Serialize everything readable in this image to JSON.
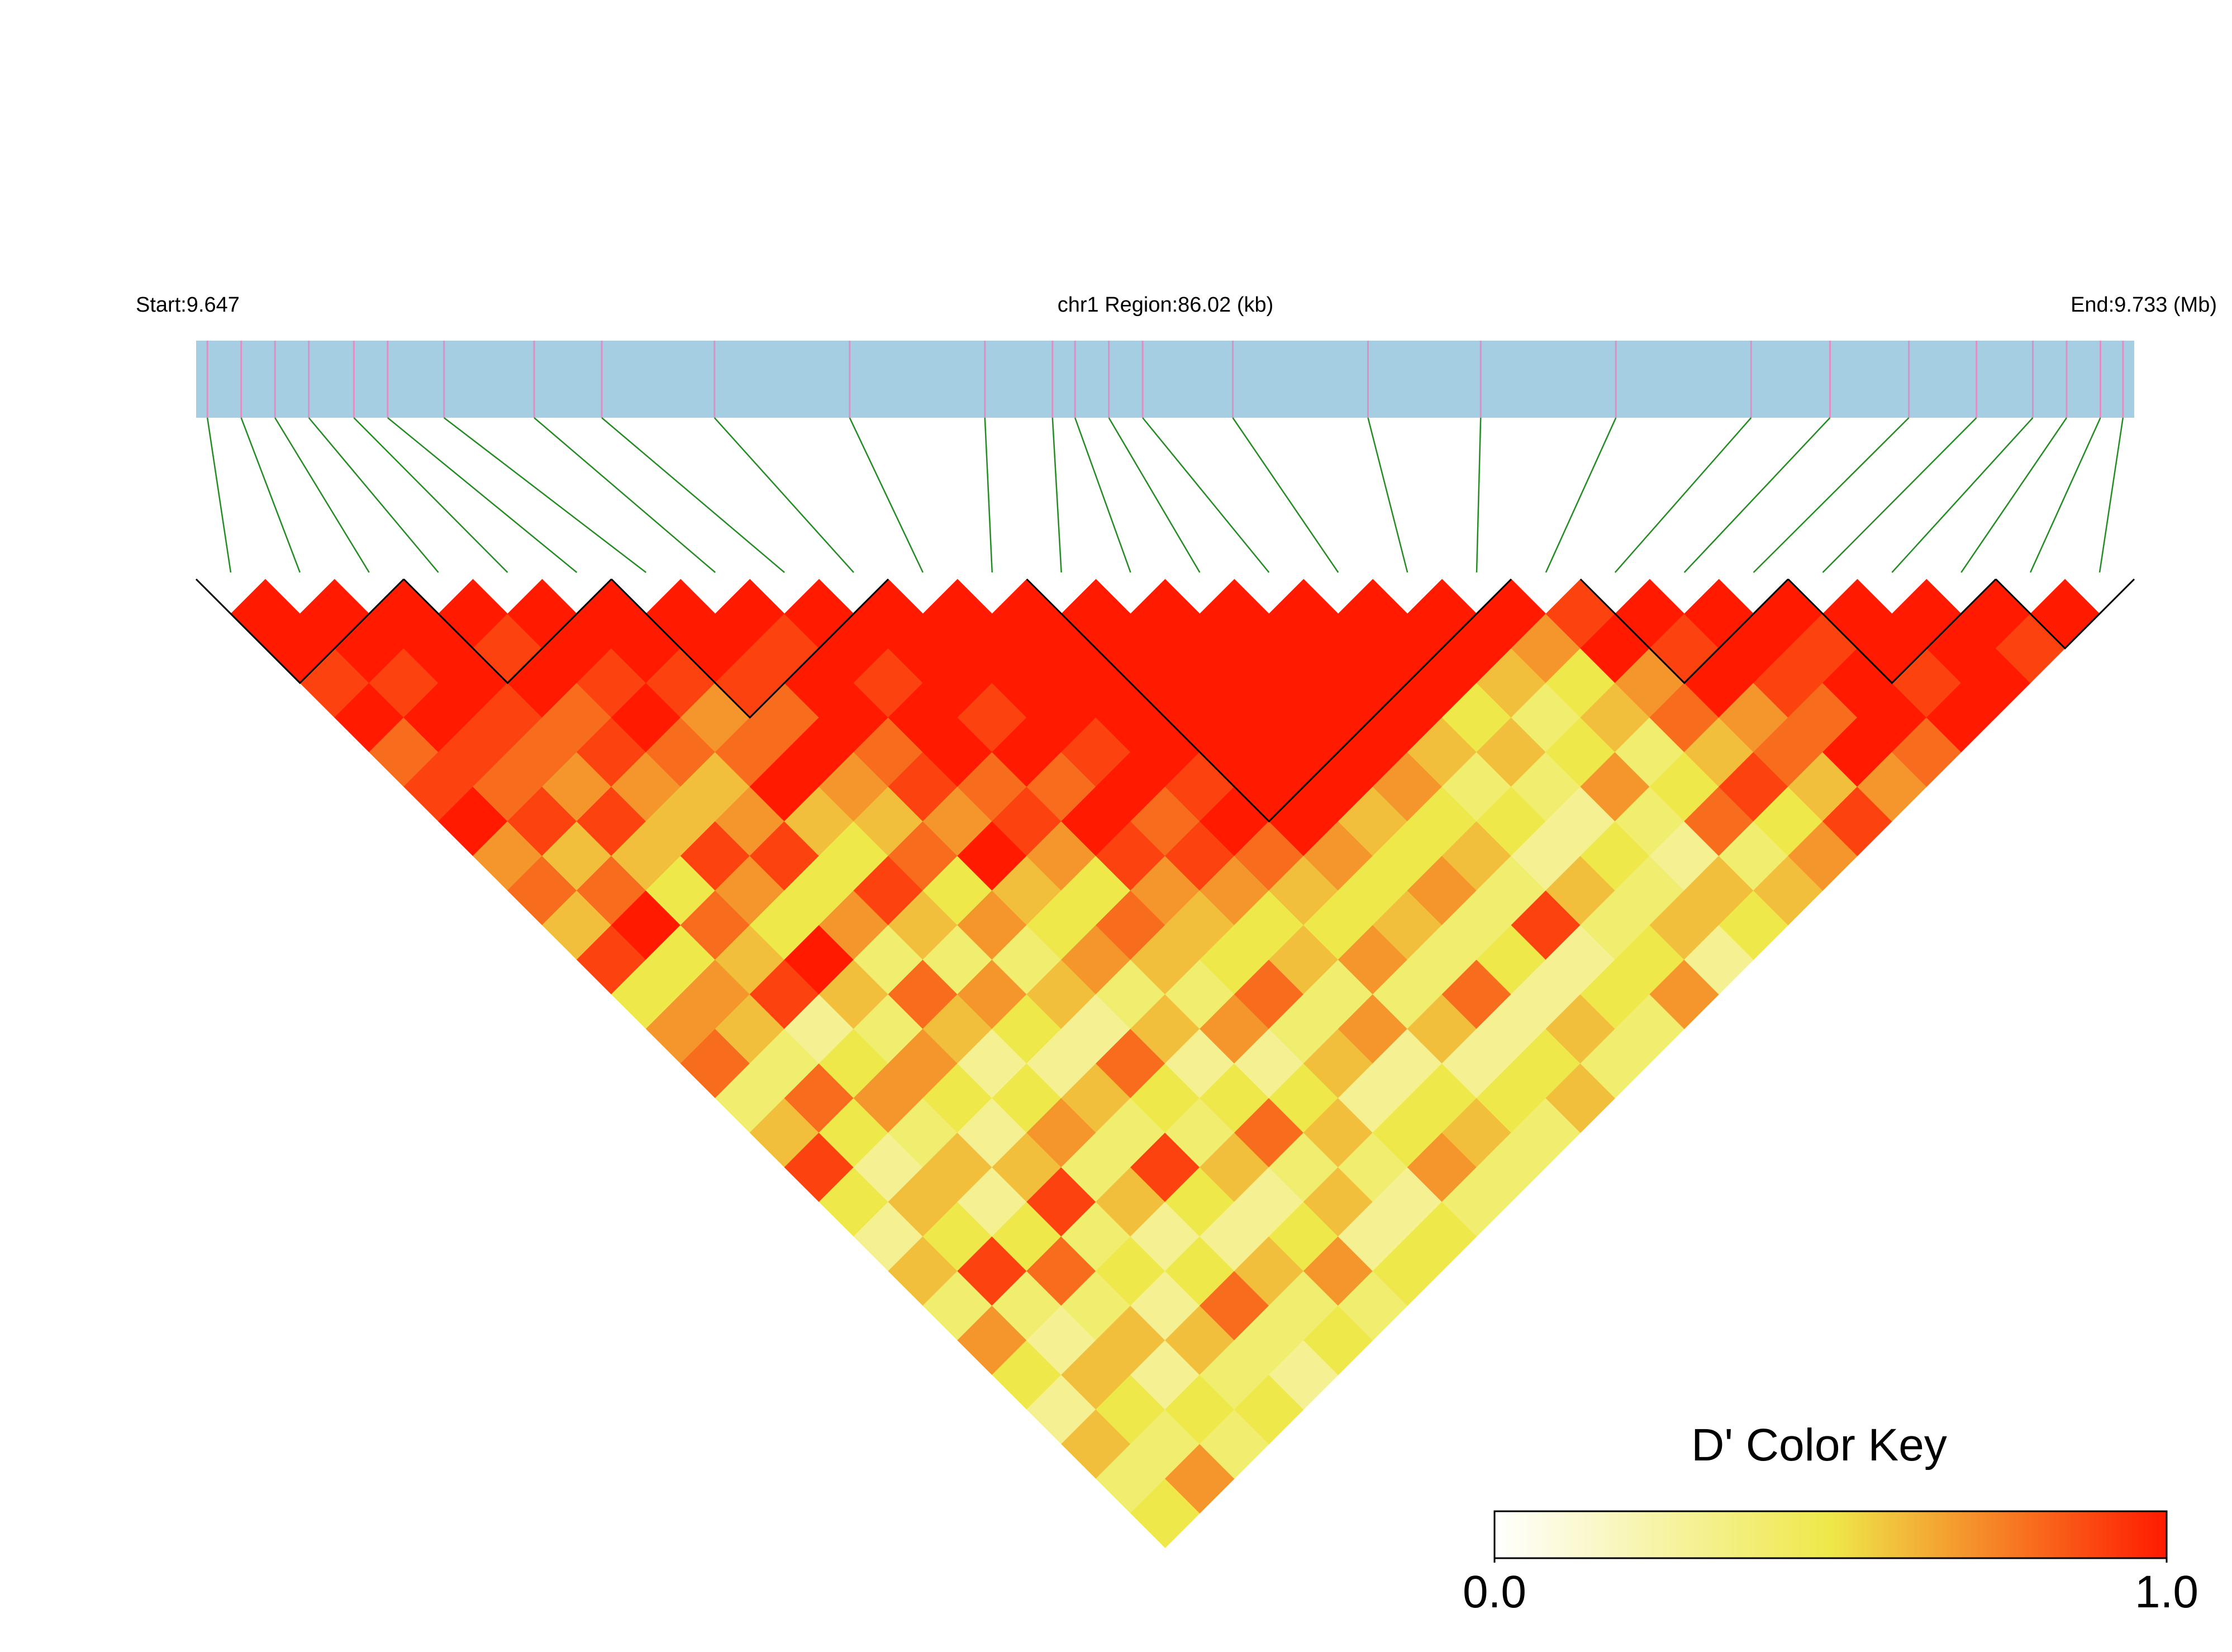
{
  "chart_data": {
    "type": "ld_heatmap",
    "start_label": "Start:9.647",
    "region_label": "chr1 Region:86.02 (kb)",
    "end_label": "End:9.733 (Mb)",
    "xlim": [
      9.647,
      9.733
    ],
    "positions": [
      9.6475,
      9.649,
      9.6505,
      9.652,
      9.654,
      9.6555,
      9.658,
      9.662,
      9.665,
      9.67,
      9.676,
      9.682,
      9.685,
      9.686,
      9.6875,
      9.689,
      9.693,
      9.699,
      9.704,
      9.71,
      9.716,
      9.7195,
      9.723,
      9.726,
      9.7285,
      9.73,
      9.7315,
      9.7325
    ],
    "bar_color": "#a6cee3",
    "snp_color": "#e08fc4",
    "link_color": "#228b22",
    "block_color": "#000000",
    "colormap": [
      "#ffffff",
      "#eee84a",
      "#ff1a00"
    ],
    "ld": [
      [
        1,
        1,
        0.9,
        1,
        0.8,
        0.9,
        1,
        0.7,
        0.8,
        0.6,
        0.9,
        0.5,
        0.7,
        0.8,
        0.4,
        0.6,
        0.9,
        0.5,
        0.3,
        0.6,
        0.4,
        0.7,
        0.5,
        0.3,
        0.6,
        0.4,
        0.5
      ],
      [
        1,
        1,
        0.9,
        1,
        0.9,
        0.8,
        0.9,
        0.6,
        0.8,
        1,
        0.5,
        0.7,
        0.6,
        0.4,
        0.8,
        0.5,
        0.3,
        0.6,
        0.5,
        0.9,
        0.4,
        0.3,
        0.6,
        0.5,
        0.4,
        0.7
      ],
      [
        1,
        1,
        1,
        0.9,
        0.8,
        0.7,
        0.9,
        0.6,
        0.5,
        0.8,
        0.6,
        0.9,
        0.3,
        0.5,
        0.7,
        0.4,
        0.6,
        0.3,
        0.5,
        0.8,
        0.4,
        0.6,
        0.3,
        0.5,
        0.4
      ],
      [
        1,
        0.9,
        1,
        0.8,
        0.9,
        0.7,
        0.6,
        0.9,
        0.7,
        0.5,
        1,
        0.6,
        0.4,
        0.7,
        0.5,
        0.3,
        0.6,
        0.9,
        0.4,
        0.5,
        0.3,
        0.6,
        0.4,
        0.5
      ],
      [
        1,
        1,
        0.9,
        1,
        0.8,
        0.6,
        0.7,
        0.9,
        0.5,
        0.7,
        0.4,
        0.8,
        0.6,
        0.3,
        0.5,
        0.7,
        0.4,
        0.6,
        0.3,
        0.5,
        0.8,
        0.4,
        0.3
      ],
      [
        1,
        1,
        0.9,
        0.7,
        0.8,
        1,
        0.6,
        0.5,
        0.9,
        0.6,
        0.4,
        0.7,
        0.5,
        0.3,
        0.6,
        0.4,
        0.9,
        0.5,
        0.3,
        0.6,
        0.4,
        0.5
      ],
      [
        1,
        1,
        0.9,
        0.8,
        1,
        0.7,
        0.6,
        0.8,
        0.5,
        0.7,
        0.4,
        0.6,
        0.3,
        0.8,
        0.5,
        0.4,
        0.6,
        0.3,
        0.5,
        0.7,
        0.4
      ],
      [
        1,
        0.9,
        1,
        1,
        0.8,
        0.9,
        0.7,
        1,
        0.6,
        0.5,
        0.7,
        0.4,
        0.6,
        0.3,
        0.5,
        0.8,
        0.4,
        0.6,
        0.3,
        0.5
      ],
      [
        1,
        1,
        0.9,
        1,
        1,
        0.8,
        0.9,
        0.7,
        0.5,
        0.8,
        0.6,
        0.4,
        0.7,
        0.3,
        0.5,
        0.6,
        0.4,
        0.3,
        0.5
      ],
      [
        1,
        1,
        1,
        0.9,
        1,
        0.8,
        1,
        0.9,
        0.7,
        0.6,
        0.5,
        0.8,
        0.4,
        0.6,
        0.3,
        0.5,
        0.7,
        0.4
      ],
      [
        1,
        1,
        1,
        1,
        0.9,
        1,
        0.8,
        0.9,
        0.7,
        0.5,
        0.6,
        0.4,
        0.7,
        0.3,
        0.5,
        0.6,
        0.4
      ],
      [
        1,
        1,
        1,
        1,
        1,
        0.9,
        1,
        0.8,
        0.6,
        0.5,
        0.7,
        0.4,
        0.6,
        0.3,
        0.5,
        0.4
      ],
      [
        1,
        1,
        1,
        1,
        1,
        1,
        1,
        0.7,
        0.5,
        0.6,
        0.4,
        0.8,
        0.3,
        0.5,
        0.6
      ],
      [
        1,
        1,
        1,
        1,
        1,
        1,
        0.6,
        0.5,
        0.7,
        0.4,
        0.5,
        0.3,
        0.6,
        0.4
      ],
      [
        1,
        1,
        1,
        1,
        1,
        0.7,
        0.5,
        0.6,
        0.4,
        0.9,
        0.3,
        0.5,
        0.4
      ],
      [
        1,
        1,
        1,
        1,
        0.6,
        0.4,
        0.5,
        0.3,
        0.6,
        0.4,
        0.5,
        0.7
      ],
      [
        1,
        1,
        1,
        0.5,
        0.6,
        0.4,
        0.3,
        0.5,
        0.4,
        0.6,
        0.3
      ],
      [
        1,
        1,
        0.6,
        0.4,
        0.5,
        0.7,
        0.4,
        0.3,
        0.6,
        0.5
      ],
      [
        1,
        0.7,
        0.5,
        0.6,
        0.4,
        0.5,
        0.8,
        0.4,
        0.6
      ],
      [
        0.9,
        1,
        0.7,
        0.8,
        0.6,
        0.9,
        0.5,
        0.7
      ],
      [
        1,
        0.9,
        1,
        0.7,
        0.8,
        0.6,
        0.9
      ],
      [
        1,
        1,
        0.9,
        0.8,
        1,
        0.7
      ],
      [
        1,
        0.9,
        1,
        1,
        0.8
      ],
      [
        1,
        1,
        0.9,
        1
      ],
      [
        1,
        1,
        1
      ],
      [
        1,
        0.9
      ],
      [
        1
      ]
    ],
    "blocks": [
      [
        0,
        2
      ],
      [
        3,
        5
      ],
      [
        6,
        9
      ],
      [
        12,
        18
      ],
      [
        20,
        22
      ],
      [
        23,
        25
      ],
      [
        26,
        27
      ]
    ],
    "colorbar": {
      "title": "D' Color Key",
      "lim": [
        0,
        1
      ],
      "ticks": [
        {
          "value": 0,
          "label": "0.0"
        },
        {
          "value": 1,
          "label": "1.0"
        }
      ]
    }
  }
}
